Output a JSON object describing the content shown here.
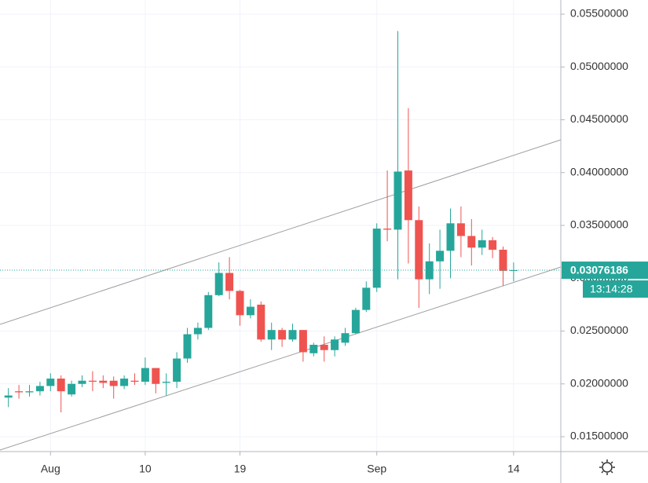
{
  "chart_data": {
    "type": "candlestick",
    "categories": [
      null,
      null,
      null,
      null,
      "Aug",
      null,
      null,
      null,
      null,
      null,
      null,
      null,
      null,
      "10",
      null,
      null,
      null,
      null,
      null,
      null,
      null,
      null,
      "19",
      null,
      null,
      null,
      null,
      null,
      null,
      null,
      null,
      null,
      null,
      null,
      null,
      "Sep",
      null,
      null,
      null,
      null,
      null,
      null,
      null,
      null,
      null,
      null,
      null,
      null,
      "14"
    ],
    "open": [
      0.0187,
      0.0193,
      0.0192,
      0.0193,
      0.0198,
      0.0205,
      0.019,
      0.02,
      0.0203,
      0.0203,
      0.0203,
      0.0198,
      0.0203,
      0.0202,
      0.0215,
      0.0201,
      0.0202,
      0.0224,
      0.0247,
      0.0253,
      0.0284,
      0.0305,
      0.0288,
      0.0265,
      0.0275,
      0.0242,
      0.0251,
      0.0242,
      0.0251,
      0.0229,
      0.0237,
      0.0232,
      0.0239,
      0.0248,
      0.027,
      0.0291,
      0.0347,
      0.0346,
      0.0402,
      0.0355,
      0.0299,
      0.0316,
      0.0326,
      0.0352,
      0.034,
      0.0329,
      0.0336,
      0.0327,
      0.0307
    ],
    "high": [
      0.0196,
      0.0199,
      0.0199,
      0.0202,
      0.021,
      0.0208,
      0.0203,
      0.0208,
      0.0212,
      0.0208,
      0.0207,
      0.0208,
      0.021,
      0.0225,
      0.0215,
      0.021,
      0.023,
      0.0253,
      0.0258,
      0.0287,
      0.0315,
      0.032,
      0.0289,
      0.028,
      0.0278,
      0.0258,
      0.0253,
      0.0257,
      0.0251,
      0.0239,
      0.0245,
      0.0245,
      0.0253,
      0.0272,
      0.0297,
      0.0352,
      0.0402,
      0.0534,
      0.0461,
      0.0368,
      0.0333,
      0.0346,
      0.0366,
      0.0368,
      0.0356,
      0.0346,
      0.0339,
      0.033,
      0.0315
    ],
    "low": [
      0.0178,
      0.0186,
      0.0188,
      0.0189,
      0.0193,
      0.0173,
      0.0188,
      0.0197,
      0.0193,
      0.0196,
      0.0186,
      0.0195,
      0.0199,
      0.0199,
      0.0191,
      0.0189,
      0.0196,
      0.022,
      0.0242,
      0.0251,
      0.0283,
      0.028,
      0.0255,
      0.0262,
      0.024,
      0.0232,
      0.0235,
      0.024,
      0.0221,
      0.0226,
      0.0221,
      0.0226,
      0.0236,
      0.0247,
      0.0268,
      0.0287,
      0.0335,
      0.0299,
      0.0314,
      0.0272,
      0.0285,
      0.029,
      0.03,
      0.032,
      0.0312,
      0.0322,
      0.0319,
      0.0293,
      0.0297
    ],
    "close": [
      0.0189,
      0.0192,
      0.0193,
      0.0198,
      0.0205,
      0.0193,
      0.02,
      0.0203,
      0.0202,
      0.0201,
      0.0198,
      0.0205,
      0.0202,
      0.0215,
      0.02,
      0.0202,
      0.0224,
      0.0247,
      0.0253,
      0.0284,
      0.0305,
      0.0288,
      0.0265,
      0.0273,
      0.0242,
      0.0251,
      0.0242,
      0.0251,
      0.023,
      0.0237,
      0.0232,
      0.0242,
      0.0248,
      0.027,
      0.0291,
      0.0347,
      0.0346,
      0.0401,
      0.0355,
      0.0299,
      0.0316,
      0.0326,
      0.0352,
      0.034,
      0.0329,
      0.0336,
      0.0327,
      0.0307,
      0.03076186
    ],
    "up_color": "#26a69a",
    "down_color": "#ef5350",
    "ylim": [
      0.01359,
      0.05634
    ],
    "yticks": [
      {
        "value": 0.015,
        "label": "0.01500000"
      },
      {
        "value": 0.02,
        "label": "0.02000000"
      },
      {
        "value": 0.025,
        "label": "0.02500000"
      },
      {
        "value": 0.03,
        "label": "0.03000000"
      },
      {
        "value": 0.035,
        "label": "0.03500000"
      },
      {
        "value": 0.04,
        "label": "0.04000000"
      },
      {
        "value": 0.045,
        "label": "0.04500000"
      },
      {
        "value": 0.05,
        "label": "0.05000000"
      },
      {
        "value": 0.055,
        "label": "0.05500000"
      }
    ],
    "grid": true,
    "last_price": 0.03076186,
    "countdown": "13:14:28"
  }
}
